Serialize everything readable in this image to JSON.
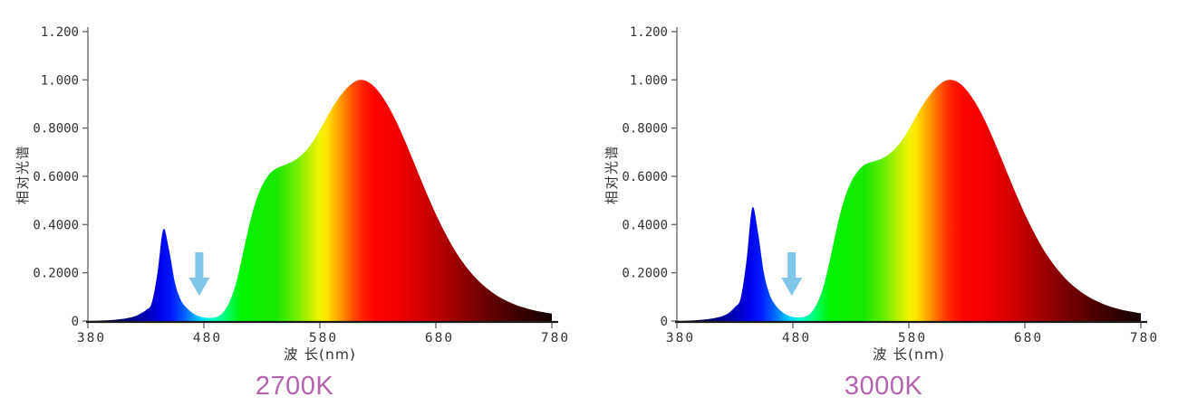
{
  "style": {
    "background": "#ffffff",
    "title_color": "#b264ac",
    "arrow_color": "#7fc6ea",
    "axis_line_color": "#6a6a6a",
    "baseline_color": "#1a1a1a",
    "tick_text_color": "#333333",
    "spectrum_gradient": [
      [
        380,
        "#000018"
      ],
      [
        408,
        "#000068"
      ],
      [
        428,
        "#0000b0"
      ],
      [
        442,
        "#0000e8"
      ],
      [
        452,
        "#0018ff"
      ],
      [
        464,
        "#0064ff"
      ],
      [
        476,
        "#00ccff"
      ],
      [
        486,
        "#00ffd4"
      ],
      [
        498,
        "#00ff78"
      ],
      [
        512,
        "#00f400"
      ],
      [
        542,
        "#1ae800"
      ],
      [
        558,
        "#66ee00"
      ],
      [
        570,
        "#b4f000"
      ],
      [
        580,
        "#f2f400"
      ],
      [
        586,
        "#ffe400"
      ],
      [
        594,
        "#ffb400"
      ],
      [
        602,
        "#ff7d00"
      ],
      [
        610,
        "#ff4400"
      ],
      [
        618,
        "#ff1c00"
      ],
      [
        628,
        "#fc0400"
      ],
      [
        648,
        "#f00000"
      ],
      [
        668,
        "#d40000"
      ],
      [
        690,
        "#aa0000"
      ],
      [
        714,
        "#7c0000"
      ],
      [
        740,
        "#4e0000"
      ],
      [
        762,
        "#2c0000"
      ],
      [
        780,
        "#140000"
      ]
    ]
  },
  "axes": {
    "ylabel": "相对光谱",
    "xlabel": "波 长(nm)",
    "y_ticks": [
      {
        "label": "1.200",
        "value": 1.2
      },
      {
        "label": "1.000",
        "value": 1.0
      },
      {
        "label": "0.8000",
        "value": 0.8
      },
      {
        "label": "0.6000",
        "value": 0.6
      },
      {
        "label": "0.4000",
        "value": 0.4
      },
      {
        "label": "0.2000",
        "value": 0.2
      },
      {
        "label": "0",
        "value": 0
      }
    ],
    "x_ticks": [
      {
        "label": "380",
        "value": 380
      },
      {
        "label": "480",
        "value": 480
      },
      {
        "label": "580",
        "value": 580
      },
      {
        "label": "680",
        "value": 680
      },
      {
        "label": "780",
        "value": 780
      }
    ],
    "x_range": [
      380,
      780
    ],
    "y_range": [
      0,
      1.2
    ],
    "grid": false,
    "legend": false
  },
  "chart_data": [
    {
      "type": "area",
      "title": "2700K",
      "xlabel": "波 长(nm)",
      "ylabel": "相对光谱",
      "x_start": 380,
      "x_step": 5,
      "x": [
        380,
        385,
        390,
        395,
        400,
        405,
        410,
        415,
        420,
        425,
        430,
        435,
        440,
        445,
        450,
        455,
        460,
        465,
        470,
        475,
        480,
        485,
        490,
        495,
        500,
        505,
        510,
        515,
        520,
        525,
        530,
        535,
        540,
        545,
        550,
        555,
        560,
        565,
        570,
        575,
        580,
        585,
        590,
        595,
        600,
        605,
        610,
        615,
        620,
        625,
        630,
        635,
        640,
        645,
        650,
        655,
        660,
        665,
        670,
        675,
        680,
        685,
        690,
        695,
        700,
        705,
        710,
        715,
        720,
        725,
        730,
        735,
        740,
        745,
        750,
        755,
        760,
        765,
        770,
        775,
        780
      ],
      "values": [
        0.001,
        0.001,
        0.002,
        0.003,
        0.004,
        0.006,
        0.009,
        0.013,
        0.019,
        0.03,
        0.045,
        0.075,
        0.2,
        0.38,
        0.295,
        0.16,
        0.088,
        0.055,
        0.034,
        0.021,
        0.015,
        0.013,
        0.016,
        0.028,
        0.06,
        0.115,
        0.2,
        0.31,
        0.415,
        0.5,
        0.56,
        0.6,
        0.625,
        0.638,
        0.648,
        0.658,
        0.672,
        0.692,
        0.718,
        0.752,
        0.792,
        0.836,
        0.878,
        0.916,
        0.948,
        0.974,
        0.992,
        1.0,
        0.995,
        0.98,
        0.955,
        0.922,
        0.882,
        0.836,
        0.784,
        0.728,
        0.67,
        0.611,
        0.553,
        0.497,
        0.443,
        0.393,
        0.347,
        0.304,
        0.266,
        0.232,
        0.202,
        0.175,
        0.152,
        0.132,
        0.114,
        0.099,
        0.086,
        0.075,
        0.065,
        0.057,
        0.05,
        0.044,
        0.039,
        0.035,
        0.031
      ],
      "annotation": {
        "type": "down-arrow",
        "x_nm": 476
      }
    },
    {
      "type": "area",
      "title": "3000K",
      "xlabel": "波 长(nm)",
      "ylabel": "相对光谱",
      "x_start": 380,
      "x_step": 5,
      "x": [
        380,
        385,
        390,
        395,
        400,
        405,
        410,
        415,
        420,
        425,
        430,
        435,
        440,
        445,
        450,
        455,
        460,
        465,
        470,
        475,
        480,
        485,
        490,
        495,
        500,
        505,
        510,
        515,
        520,
        525,
        530,
        535,
        540,
        545,
        550,
        555,
        560,
        565,
        570,
        575,
        580,
        585,
        590,
        595,
        600,
        605,
        610,
        615,
        620,
        625,
        630,
        635,
        640,
        645,
        650,
        655,
        660,
        665,
        670,
        675,
        680,
        685,
        690,
        695,
        700,
        705,
        710,
        715,
        720,
        725,
        730,
        735,
        740,
        745,
        750,
        755,
        760,
        765,
        770,
        775,
        780
      ],
      "values": [
        0.001,
        0.001,
        0.002,
        0.003,
        0.005,
        0.007,
        0.01,
        0.015,
        0.022,
        0.035,
        0.058,
        0.095,
        0.25,
        0.47,
        0.365,
        0.2,
        0.11,
        0.066,
        0.04,
        0.025,
        0.017,
        0.015,
        0.018,
        0.031,
        0.065,
        0.122,
        0.212,
        0.322,
        0.43,
        0.515,
        0.575,
        0.615,
        0.642,
        0.655,
        0.662,
        0.67,
        0.682,
        0.7,
        0.724,
        0.756,
        0.795,
        0.838,
        0.88,
        0.917,
        0.949,
        0.975,
        0.993,
        1.0,
        0.996,
        0.981,
        0.956,
        0.923,
        0.883,
        0.837,
        0.785,
        0.729,
        0.671,
        0.612,
        0.554,
        0.498,
        0.444,
        0.394,
        0.348,
        0.305,
        0.267,
        0.233,
        0.203,
        0.176,
        0.153,
        0.133,
        0.115,
        0.1,
        0.087,
        0.076,
        0.066,
        0.058,
        0.051,
        0.045,
        0.04,
        0.036,
        0.032
      ],
      "annotation": {
        "type": "down-arrow",
        "x_nm": 479
      }
    }
  ]
}
